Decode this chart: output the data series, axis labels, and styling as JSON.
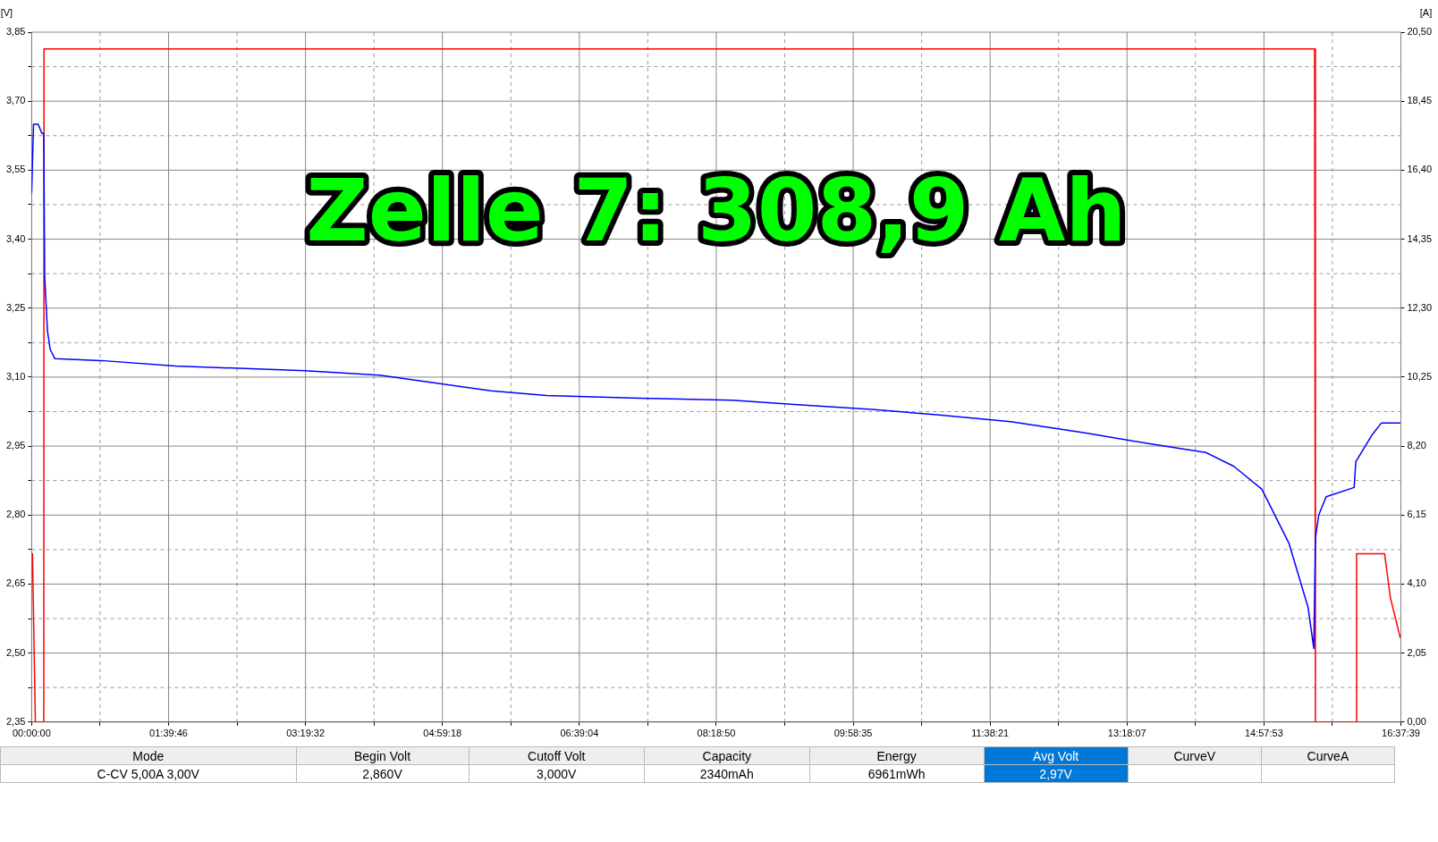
{
  "chart_data": {
    "type": "line",
    "ylabel": "[V]",
    "y2label": "[A]",
    "annotations": [
      "Zelle 7: 308,9 Ah",
      "Mode",
      "Begin Volt",
      "Cutoff Volt",
      "Capacity",
      "Energy",
      "Avg Volt",
      "CurveV",
      "CurveA",
      "C-CV 5,00A  3,00V",
      "2,860V",
      "3,000V",
      "2340mAh",
      "6961mWh",
      "2,97V"
    ],
    "xlim": [
      0,
      16.6275
    ],
    "xticks": [
      {
        "value": 0,
        "label": "00:00:00"
      },
      {
        "value": 0.8314,
        "label": null
      },
      {
        "value": 1.6628,
        "label": "01:39:46"
      },
      {
        "value": 2.4942,
        "label": null
      },
      {
        "value": 3.3256,
        "label": "03:19:32"
      },
      {
        "value": 4.1569,
        "label": null
      },
      {
        "value": 4.9883,
        "label": "04:59:18"
      },
      {
        "value": 5.8197,
        "label": null
      },
      {
        "value": 6.6511,
        "label": "06:39:04"
      },
      {
        "value": 7.4825,
        "label": null
      },
      {
        "value": 8.3139,
        "label": "08:18:50"
      },
      {
        "value": 9.1451,
        "label": null
      },
      {
        "value": 9.9764,
        "label": "09:58:35"
      },
      {
        "value": 10.8078,
        "label": null
      },
      {
        "value": 11.6392,
        "label": "11:38:21"
      },
      {
        "value": 12.4706,
        "label": null
      },
      {
        "value": 13.3019,
        "label": "13:18:07"
      },
      {
        "value": 14.1333,
        "label": null
      },
      {
        "value": 14.9647,
        "label": "14:57:53"
      },
      {
        "value": 15.7961,
        "label": null
      },
      {
        "value": 16.6275,
        "label": "16:37:39"
      }
    ],
    "ylim": [
      2.35,
      3.85
    ],
    "yticks": [
      {
        "value": 2.35,
        "label": "2,35"
      },
      {
        "value": 2.425,
        "label": null
      },
      {
        "value": 2.5,
        "label": "2,50"
      },
      {
        "value": 2.575,
        "label": null
      },
      {
        "value": 2.65,
        "label": "2,65"
      },
      {
        "value": 2.725,
        "label": null
      },
      {
        "value": 2.8,
        "label": "2,80"
      },
      {
        "value": 2.875,
        "label": null
      },
      {
        "value": 2.95,
        "label": "2,95"
      },
      {
        "value": 3.025,
        "label": null
      },
      {
        "value": 3.1,
        "label": "3,10"
      },
      {
        "value": 3.175,
        "label": null
      },
      {
        "value": 3.25,
        "label": "3,25"
      },
      {
        "value": 3.325,
        "label": null
      },
      {
        "value": 3.4,
        "label": "3,40"
      },
      {
        "value": 3.475,
        "label": null
      },
      {
        "value": 3.55,
        "label": "3,55"
      },
      {
        "value": 3.625,
        "label": null
      },
      {
        "value": 3.7,
        "label": "3,70"
      },
      {
        "value": 3.775,
        "label": null
      },
      {
        "value": 3.85,
        "label": "3,85"
      }
    ],
    "y2lim": [
      0,
      20.5
    ],
    "y2ticks": [
      {
        "value": 0,
        "label": "0,00"
      },
      {
        "value": 2.05,
        "label": "2,05"
      },
      {
        "value": 4.1,
        "label": "4,10"
      },
      {
        "value": 6.15,
        "label": "6,15"
      },
      {
        "value": 8.2,
        "label": "8,20"
      },
      {
        "value": 10.25,
        "label": "10,25"
      },
      {
        "value": 12.3,
        "label": "12,30"
      },
      {
        "value": 14.35,
        "label": "14,35"
      },
      {
        "value": 16.4,
        "label": "16,40"
      },
      {
        "value": 18.45,
        "label": "18,45"
      },
      {
        "value": 20.5,
        "label": "20,50"
      }
    ],
    "grid": true,
    "legend": false,
    "marker": "none",
    "line_style": "solid",
    "series": [
      {
        "color": "#0000ff",
        "x": [
          0,
          0.0225,
          0.079,
          0.124,
          0.147,
          0.158,
          0.192,
          0.225,
          0.282,
          0.845,
          1.747,
          3.325,
          4.227,
          4.904,
          5.58,
          6.256,
          7.384,
          8.511,
          9.3,
          10.2,
          10.99,
          11.89,
          12.79,
          13.58,
          14.26,
          14.6,
          14.94,
          15.27,
          15.5,
          15.57,
          15.59,
          15.63,
          15.72,
          16.06,
          16.08,
          16.28,
          16.39,
          16.62
        ],
        "values": [
          3.5,
          3.65,
          3.65,
          3.63,
          3.63,
          3.32,
          3.2,
          3.16,
          3.14,
          3.136,
          3.124,
          3.114,
          3.104,
          3.087,
          3.07,
          3.06,
          3.054,
          3.05,
          3.04,
          3.03,
          3.018,
          3.003,
          2.979,
          2.955,
          2.936,
          2.906,
          2.856,
          2.738,
          2.6,
          2.51,
          2.75,
          2.8,
          2.84,
          2.86,
          2.916,
          2.975,
          3.0,
          3.0
        ]
      },
      {
        "color": "#ff0000",
        "axis": "y2",
        "x": [
          0,
          0.01,
          0.045,
          0.147,
          0.15,
          15.58,
          15.59,
          16.08,
          16.09,
          16.43,
          16.5,
          16.62
        ],
        "values": [
          5.0,
          5.0,
          0,
          0,
          20.0,
          20.0,
          0,
          0,
          5.0,
          5.0,
          3.7,
          2.5
        ]
      }
    ]
  }
}
